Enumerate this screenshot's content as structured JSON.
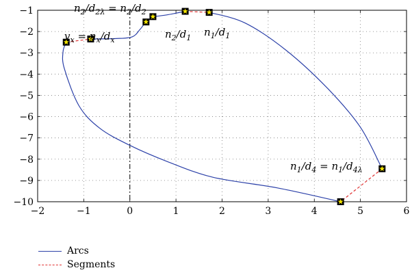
{
  "chart_data": {
    "type": "line",
    "xlim": [
      -2,
      6
    ],
    "ylim": [
      -10,
      -1
    ],
    "xticks": [
      "−2",
      "−1",
      "0",
      "1",
      "2",
      "3",
      "4",
      "5",
      "6"
    ],
    "yticks": [
      "−1",
      "−2",
      "−3",
      "−4",
      "−5",
      "−6",
      "−7",
      "−8",
      "−9",
      "−10"
    ],
    "grid": true,
    "legend_position": "below",
    "colors": {
      "arcs": "#2b40a8",
      "segments": "#e03030",
      "marker_fill": "#f5e600"
    },
    "series": [
      {
        "name": "Arcs",
        "style": "solid",
        "paths": [
          [
            [
              -0.85,
              -2.35
            ],
            [
              -0.3,
              -2.33
            ],
            [
              0.05,
              -2.25
            ],
            [
              0.22,
              -1.9
            ],
            [
              0.35,
              -1.55
            ],
            [
              0.5,
              -1.3
            ]
          ],
          [
            [
              0.5,
              -1.3
            ],
            [
              0.8,
              -1.22
            ],
            [
              1.2,
              -1.05
            ]
          ],
          [
            [
              1.72,
              -1.1
            ],
            [
              2.5,
              -1.6
            ],
            [
              3.4,
              -2.9
            ],
            [
              4.3,
              -4.7
            ],
            [
              5.0,
              -6.5
            ],
            [
              5.47,
              -8.45
            ]
          ],
          [
            [
              4.57,
              -10.0
            ],
            [
              3.2,
              -9.35
            ],
            [
              1.8,
              -8.85
            ],
            [
              0.8,
              -8.1
            ],
            [
              0.0,
              -7.35
            ],
            [
              -0.65,
              -6.55
            ],
            [
              -1.1,
              -5.5
            ],
            [
              -1.42,
              -3.75
            ],
            [
              -1.45,
              -2.95
            ],
            [
              -1.38,
              -2.5
            ]
          ]
        ]
      },
      {
        "name": "Segments",
        "style": "dashed",
        "paths": [
          [
            [
              -1.38,
              -2.5
            ],
            [
              -0.85,
              -2.35
            ]
          ],
          [
            [
              1.2,
              -1.05
            ],
            [
              1.72,
              -1.1
            ]
          ],
          [
            [
              5.47,
              -8.45
            ],
            [
              4.57,
              -10.0
            ]
          ]
        ]
      }
    ],
    "markers": [
      [
        -1.38,
        -2.5
      ],
      [
        -0.85,
        -2.35
      ],
      [
        0.35,
        -1.55
      ],
      [
        0.5,
        -1.3
      ],
      [
        1.2,
        -1.05
      ],
      [
        1.72,
        -1.1
      ],
      [
        5.47,
        -8.45
      ],
      [
        4.57,
        -10.0
      ]
    ],
    "annotations": [
      {
        "text": "n2/d2λ = n2/d2",
        "x": 1.2,
        "y": -1.05
      },
      {
        "text": "vx = nx/dx",
        "x": -0.85,
        "y": -2.35
      },
      {
        "text": "n2/d1",
        "x": 1.2,
        "y": -1.05
      },
      {
        "text": "n1/d1",
        "x": 1.72,
        "y": -1.1
      },
      {
        "text": "n1/d4 = n1/d4λ",
        "x": 5.47,
        "y": -8.45
      }
    ],
    "vertical_line": {
      "x": 0,
      "style": "dash-dot"
    }
  }
}
